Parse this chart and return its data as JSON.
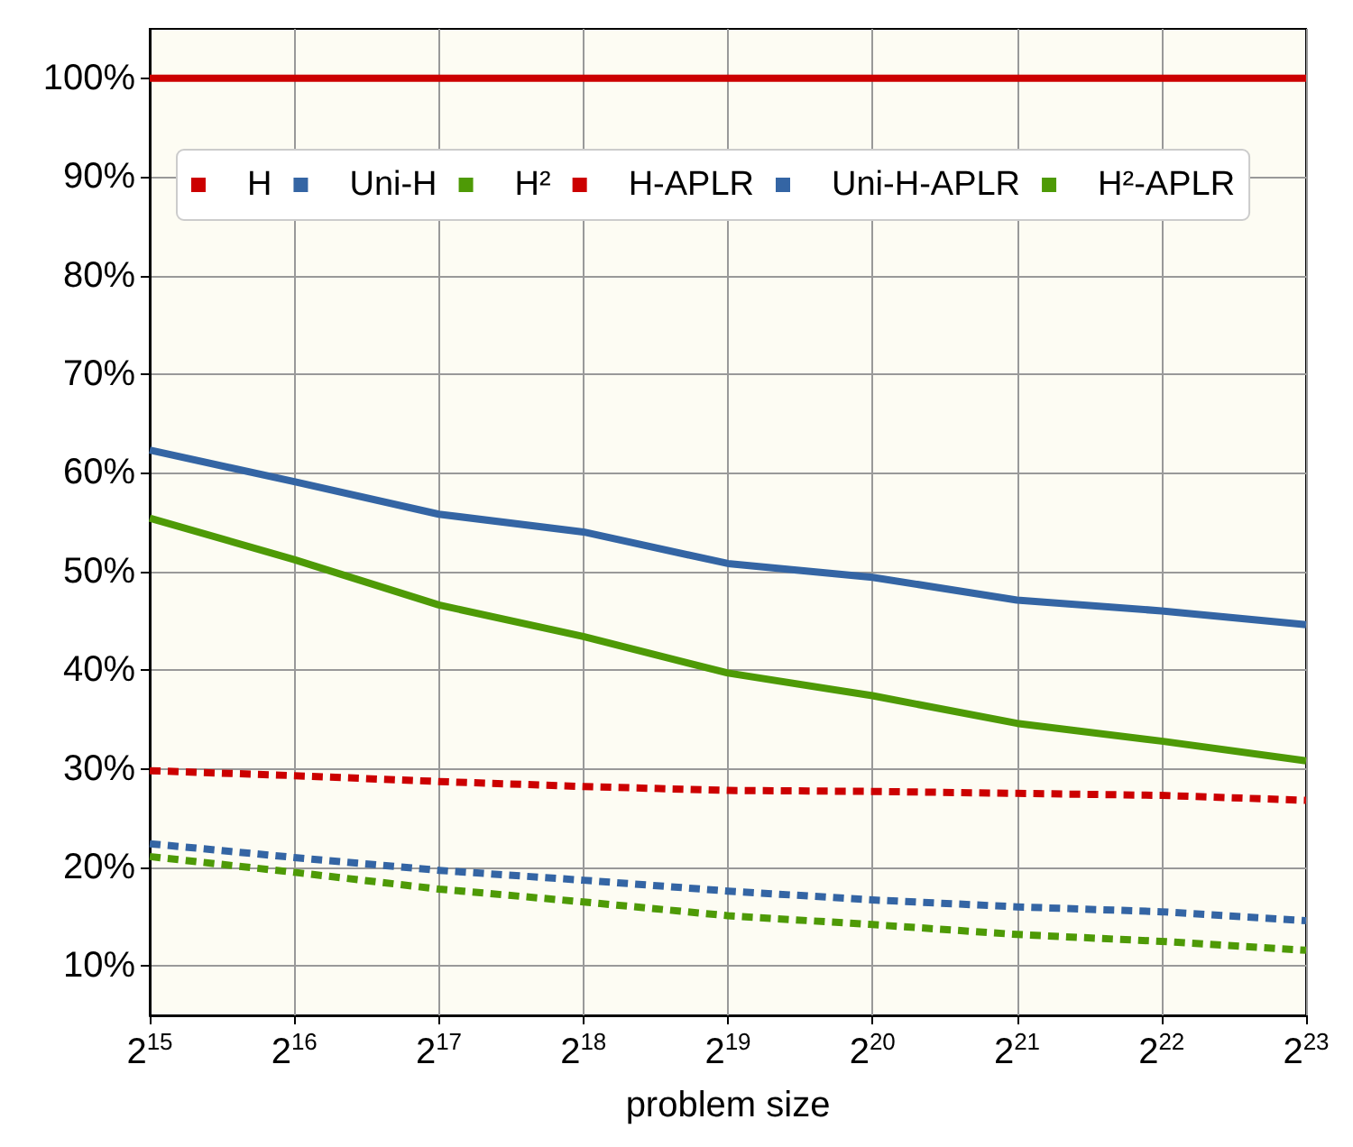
{
  "chart_data": {
    "type": "line",
    "xlabel": "problem size",
    "categories": [
      "2$^{15}$",
      "2$^{16}$",
      "2$^{17}$",
      "2$^{18}$",
      "2$^{19}$",
      "2$^{20}$",
      "2$^{21}$",
      "2$^{22}$",
      "2$^{23}$"
    ],
    "series": [
      {
        "name": "H",
        "color": "#cc0000",
        "line_style": "solid",
        "values": [
          100,
          100,
          100,
          100,
          100,
          100,
          100,
          100,
          100
        ]
      },
      {
        "name": "Uni-H",
        "color": "#3465a4",
        "line_style": "solid",
        "values": [
          62.3,
          59.1,
          55.8,
          54,
          50.8,
          49.4,
          47.1,
          46,
          44.6
        ]
      },
      {
        "name": "H²",
        "color": "#4e9a06",
        "line_style": "solid",
        "values": [
          55.4,
          51.2,
          46.6,
          43.4,
          39.7,
          37.4,
          34.6,
          32.8,
          30.8
        ]
      },
      {
        "name": "H-APLR",
        "color": "#cc0000",
        "line_style": "dashed",
        "values": [
          29.8,
          29.3,
          28.7,
          28.2,
          27.8,
          27.7,
          27.5,
          27.3,
          26.8
        ]
      },
      {
        "name": "Uni-H-APLR",
        "color": "#3465a4",
        "line_style": "dashed",
        "values": [
          22.4,
          21,
          19.7,
          18.7,
          17.6,
          16.7,
          16,
          15.5,
          14.6
        ]
      },
      {
        "name": "H²-APLR",
        "color": "#4e9a06",
        "line_style": "dashed",
        "values": [
          21.1,
          19.5,
          17.8,
          16.5,
          15.1,
          14.2,
          13.2,
          12.5,
          11.6
        ]
      }
    ],
    "ylim": [
      5,
      105
    ],
    "yticks": [
      {
        "value": 10,
        "label": "10%"
      },
      {
        "value": 20,
        "label": "20%"
      },
      {
        "value": 30,
        "label": "30%"
      },
      {
        "value": 40,
        "label": "40%"
      },
      {
        "value": 50,
        "label": "50%"
      },
      {
        "value": 60,
        "label": "60%"
      },
      {
        "value": 70,
        "label": "70%"
      },
      {
        "value": 80,
        "label": "80%"
      },
      {
        "value": 90,
        "label": "90%"
      },
      {
        "value": 100,
        "label": "100%"
      }
    ],
    "grid": true,
    "legend": "top",
    "marker": "none"
  }
}
